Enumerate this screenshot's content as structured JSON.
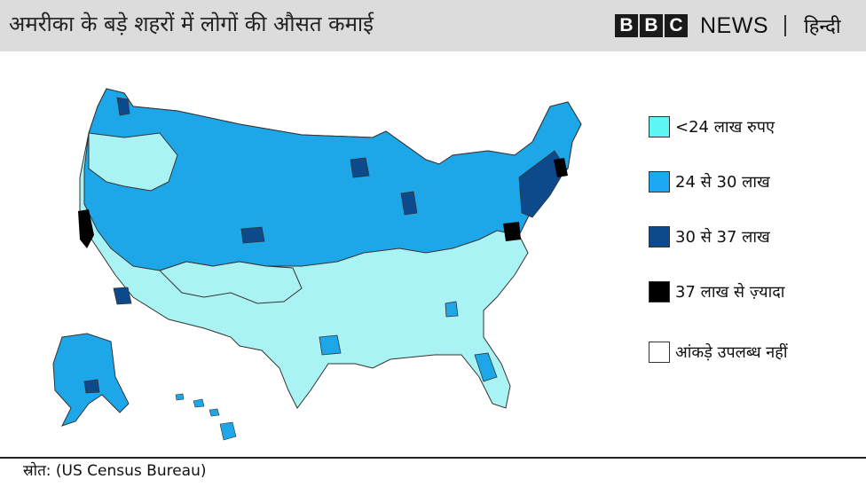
{
  "header": {
    "title": "अमरीका के बड़े शहरों में लोगों की औसत कमाई",
    "brand_letters": [
      "B",
      "B",
      "C"
    ],
    "brand_news": "NEWS",
    "brand_language": "हिन्दी"
  },
  "legend": {
    "items": [
      {
        "label": "<24 लाख रुपए",
        "color": "#5ff5f5"
      },
      {
        "label": "24 से 30 लाख",
        "color": "#1ea7f2"
      },
      {
        "label": "30 से 37 लाख",
        "color": "#0d4a8c"
      },
      {
        "label": "37 लाख से ज़्यादा",
        "color": "#000000"
      },
      {
        "label": "आंकड़े उपलब्ध नहीं",
        "color": "#ffffff"
      }
    ]
  },
  "colors": {
    "low": "#aaf3f5",
    "mid": "#1ea7e8",
    "high": "#0d4a8c",
    "top": "#000000",
    "outline": "#333333"
  },
  "footer": {
    "source": "स्रोत: (US Census Bureau)"
  }
}
